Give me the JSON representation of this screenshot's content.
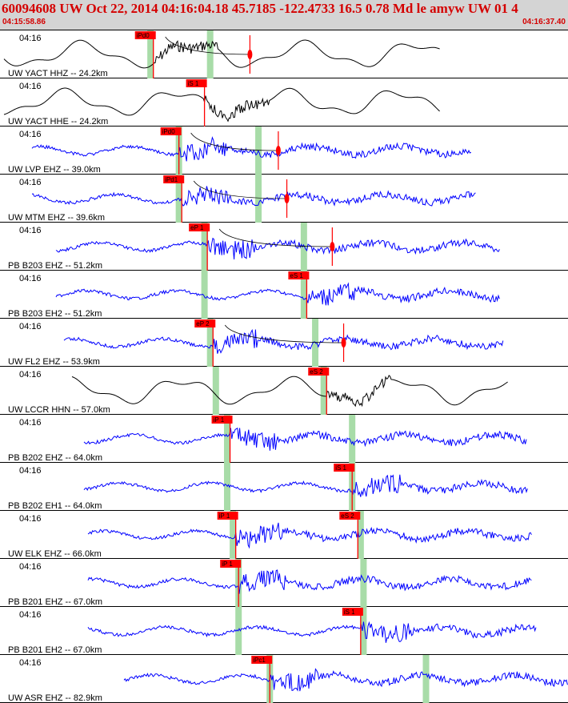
{
  "header": {
    "title": "60094608 UW Oct 22, 2014 04:16:04.18   45.7185 -122.4733 16.5 0.78 Md le amyw UW 01   4",
    "time_start": "04:15:58.86",
    "time_end": "04:16:37.40"
  },
  "colors": {
    "trace_blue": "#0000ff",
    "trace_black": "#000000",
    "pick_red": "#ff0000",
    "window_green": "#a8dca8",
    "header_red": "#d40000",
    "header_bg": "#d4d4d4"
  },
  "channels": [
    {
      "time_label": "04:16",
      "station_label": "UW YACT HHZ -- 24.2km",
      "color": "black",
      "picks": [
        {
          "label": "iPd0",
          "t": 0.27
        }
      ],
      "green": [
        0.265,
        0.37
      ],
      "marker": 0.44
    },
    {
      "time_label": "04:16",
      "station_label": "UW YACT HHE -- 24.2km",
      "color": "black",
      "picks": [
        {
          "label": "iS 1",
          "t": 0.36
        }
      ],
      "green": [],
      "marker": null
    },
    {
      "time_label": "04:16",
      "station_label": "UW LVP EHZ -- 39.0km",
      "color": "blue",
      "picks": [
        {
          "label": "iPd0",
          "t": 0.315
        }
      ],
      "green": [
        0.315,
        0.455
      ],
      "marker": 0.49
    },
    {
      "time_label": "04:16",
      "station_label": "UW MTM EHZ -- 39.6km",
      "color": "blue",
      "picks": [
        {
          "label": "iPd1",
          "t": 0.32
        }
      ],
      "green": [
        0.315,
        0.455
      ],
      "marker": 0.505
    },
    {
      "time_label": "04:16",
      "station_label": "PB B203 EHZ -- 51.2km",
      "color": "blue",
      "picks": [
        {
          "label": "eP 1",
          "t": 0.365
        }
      ],
      "green": [
        0.36,
        0.535
      ],
      "marker": 0.585
    },
    {
      "time_label": "04:16",
      "station_label": "PB B203 EH2 -- 51.2km",
      "color": "blue",
      "picks": [
        {
          "label": "eS 1",
          "t": 0.54
        }
      ],
      "green": [
        0.36,
        0.535
      ],
      "marker": null
    },
    {
      "time_label": "04:16",
      "station_label": "UW FL2 EHZ -- 53.9km",
      "color": "blue",
      "picks": [
        {
          "label": "eP 2",
          "t": 0.375
        }
      ],
      "green": [
        0.37,
        0.555
      ],
      "marker": 0.605
    },
    {
      "time_label": "04:16",
      "station_label": "UW LCCR HHN -- 57.0km",
      "color": "black",
      "picks": [
        {
          "label": "eS 2",
          "t": 0.575
        }
      ],
      "green": [
        0.38,
        0.57
      ],
      "marker": null
    },
    {
      "time_label": "04:16",
      "station_label": "PB B202 EHZ -- 64.0km",
      "color": "blue",
      "picks": [
        {
          "label": "iP 1",
          "t": 0.405
        }
      ],
      "green": [
        0.4,
        0.62
      ],
      "marker": null
    },
    {
      "time_label": "04:16",
      "station_label": "PB B202 EH1 -- 64.0km",
      "color": "blue",
      "picks": [
        {
          "label": "iS 1",
          "t": 0.62
        }
      ],
      "green": [
        0.4,
        0.62
      ],
      "marker": null
    },
    {
      "time_label": "04:16",
      "station_label": "UW ELK EHZ -- 66.0km",
      "color": "blue",
      "picks": [
        {
          "label": "iP 1",
          "t": 0.415
        },
        {
          "label": "eS 2",
          "t": 0.63
        }
      ],
      "green": [
        0.41,
        0.635
      ],
      "marker": null
    },
    {
      "time_label": "04:16",
      "station_label": "PB B201 EHZ -- 67.0km",
      "color": "blue",
      "picks": [
        {
          "label": "iP 1",
          "t": 0.42
        }
      ],
      "green": [
        0.42,
        0.64
      ],
      "marker": null
    },
    {
      "time_label": "04:16",
      "station_label": "PB B201 EH2 -- 67.0km",
      "color": "blue",
      "picks": [
        {
          "label": "iS 1",
          "t": 0.635
        }
      ],
      "green": [
        0.42,
        0.64
      ],
      "marker": null
    },
    {
      "time_label": "04:16",
      "station_label": "UW ASR EHZ -- 82.9km",
      "color": "blue",
      "picks": [
        {
          "label": "iPc1",
          "t": 0.475
        }
      ],
      "green": [
        0.475,
        0.75
      ],
      "marker": null
    }
  ]
}
